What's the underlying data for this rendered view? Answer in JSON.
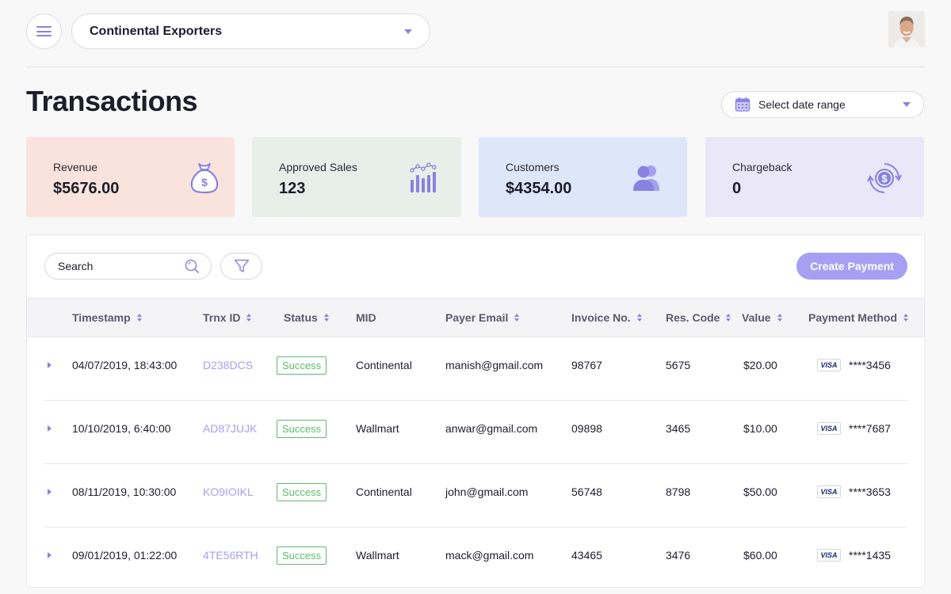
{
  "header": {
    "company": "Continental Exporters",
    "page_title": "Transactions",
    "date_range_placeholder": "Select date range"
  },
  "stats": [
    {
      "label": "Revenue",
      "value": "$5676.00",
      "icon": "money-bag-icon"
    },
    {
      "label": "Approved Sales",
      "value": "123",
      "icon": "bar-chart-icon"
    },
    {
      "label": "Customers",
      "value": "$4354.00",
      "icon": "users-icon"
    },
    {
      "label": "Chargeback",
      "value": "0",
      "icon": "refund-coin-icon"
    }
  ],
  "toolbar": {
    "search_placeholder": "Search",
    "create_label": "Create Payment"
  },
  "table": {
    "columns": [
      "Timestamp",
      "Trnx ID",
      "Status",
      "MID",
      "Payer Email",
      "Invoice No.",
      "Res. Code",
      "Value",
      "Payment Method"
    ],
    "rows": [
      {
        "timestamp": "04/07/2019, 18:43:00",
        "trnx_id": "D238DCS",
        "status": "Success",
        "mid": "Continental",
        "email": "manish@gmail.com",
        "invoice": "98767",
        "res_code": "5675",
        "value": "$20.00",
        "card_brand": "VISA",
        "card": "****3456"
      },
      {
        "timestamp": "10/10/2019, 6:40:00",
        "trnx_id": "AD87JUJK",
        "status": "Success",
        "mid": "Wallmart",
        "email": "anwar@gmail.com",
        "invoice": "09898",
        "res_code": "3465",
        "value": "$10.00",
        "card_brand": "VISA",
        "card": "****7687"
      },
      {
        "timestamp": "08/11/2019, 10:30:00",
        "trnx_id": "KO9IOIKL",
        "status": "Success",
        "mid": "Continental",
        "email": "john@gmail.com",
        "invoice": "56748",
        "res_code": "8798",
        "value": "$50.00",
        "card_brand": "VISA",
        "card": "****3653"
      },
      {
        "timestamp": "09/01/2019, 01:22:00",
        "trnx_id": "4TE56RTH",
        "status": "Success",
        "mid": "Wallmart",
        "email": "mack@gmail.com",
        "invoice": "43465",
        "res_code": "3476",
        "value": "$60.00",
        "card_brand": "VISA",
        "card": "****1435"
      }
    ]
  },
  "colors": {
    "accent": "#8a82e0",
    "button": "#a79ff3",
    "success": "#5dbb6a",
    "revenue_bg": "#f9e3dc",
    "sales_bg": "#e7efe8",
    "customers_bg": "#dee7f9",
    "chargeback_bg": "#e9e7f8"
  }
}
